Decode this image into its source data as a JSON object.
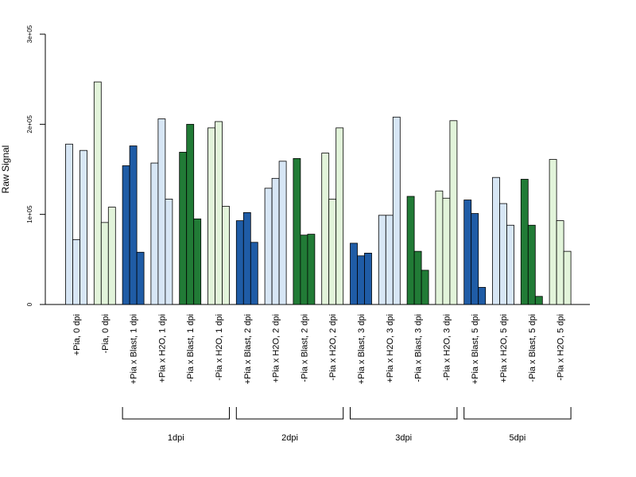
{
  "chart_data": {
    "type": "bar",
    "ylabel": "Raw Signal",
    "ylim": [
      0,
      300000
    ],
    "y_ticks": [
      {
        "value": 0,
        "label": "0"
      },
      {
        "value": 100000,
        "label": "1e+05"
      },
      {
        "value": 200000,
        "label": "2e+05"
      },
      {
        "value": 300000,
        "label": "3e+05"
      }
    ],
    "grid": false,
    "legend": "none",
    "bars_per_group": 3,
    "colors": {
      "pia_plus_light": "#d7e6f5",
      "pia_minus_light": "#e2f4da",
      "blast_blue": "#1f5ca6",
      "blast_green": "#217b36",
      "outline": "#000000"
    },
    "categories": [
      "+Pia, 0 dpi",
      "-Pia, 0 dpi",
      "+Pia x Blast, 1 dpi",
      "+Pia x H2O, 1 dpi",
      "-Pia x Blast, 1 dpi",
      "-Pia x H2O, 1 dpi",
      "+Pia x Blast, 2 dpi",
      "+Pia x H2O, 2 dpi",
      "-Pia x Blast, 2 dpi",
      "-Pia x H2O, 2 dpi",
      "+Pia x Blast, 3 dpi",
      "+Pia x H2O, 3 dpi",
      "-Pia x Blast, 3 dpi",
      "-Pia x H2O, 3 dpi",
      "+Pia x Blast, 5 dpi",
      "+Pia x H2O, 5 dpi",
      "-Pia x Blast, 5 dpi",
      "-Pia x H2O, 5 dpi"
    ],
    "category_colors": [
      "pia_plus_light",
      "pia_minus_light",
      "blast_blue",
      "pia_plus_light",
      "blast_green",
      "pia_minus_light",
      "blast_blue",
      "pia_plus_light",
      "blast_green",
      "pia_minus_light",
      "blast_blue",
      "pia_plus_light",
      "blast_green",
      "pia_minus_light",
      "blast_blue",
      "pia_plus_light",
      "blast_green",
      "pia_minus_light"
    ],
    "values": [
      [
        178000,
        72000,
        171000
      ],
      [
        247000,
        91000,
        108000
      ],
      [
        154000,
        176000,
        58000
      ],
      [
        157000,
        206000,
        117000
      ],
      [
        169000,
        200000,
        95000
      ],
      [
        196000,
        203000,
        109000
      ],
      [
        93000,
        102000,
        69000
      ],
      [
        129000,
        140000,
        159000
      ],
      [
        162000,
        77000,
        78000
      ],
      [
        168000,
        117000,
        196000
      ],
      [
        68000,
        54000,
        57000
      ],
      [
        99000,
        99000,
        208000
      ],
      [
        120000,
        59000,
        38000
      ],
      [
        126000,
        118000,
        204000
      ],
      [
        116000,
        101000,
        19000
      ],
      [
        141000,
        112000,
        88000
      ],
      [
        139000,
        88000,
        9000
      ],
      [
        161000,
        93000,
        59000
      ]
    ],
    "time_groups": [
      {
        "label": "1dpi",
        "categories": [
          2,
          5
        ]
      },
      {
        "label": "2dpi",
        "categories": [
          6,
          9
        ]
      },
      {
        "label": "3dpi",
        "categories": [
          10,
          13
        ]
      },
      {
        "label": "5dpi",
        "categories": [
          14,
          17
        ]
      }
    ]
  }
}
